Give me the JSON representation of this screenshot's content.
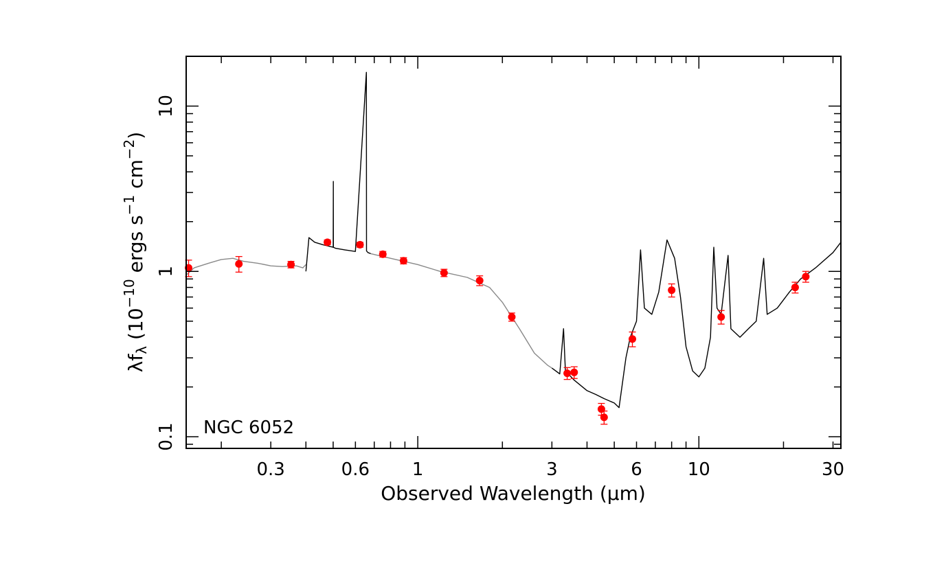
{
  "chart_data": {
    "type": "scatter",
    "title": "",
    "annotation": "NGC 6052",
    "xlabel": "Observed Wavelength (μm)",
    "ylabel": {
      "prefix": "λf",
      "sub": "λ",
      "mid1": " (10",
      "sup1": "−10",
      "mid2": " ergs s",
      "sup2": "−1",
      "mid3": " cm",
      "sup3": "−2",
      "suffix": ")"
    },
    "x_scale": "log",
    "y_scale": "log",
    "xlim": [
      0.15,
      32
    ],
    "ylim": [
      0.085,
      20
    ],
    "x_ticks": [
      0.3,
      0.6,
      1,
      3,
      6,
      10,
      30
    ],
    "x_tick_labels": [
      "0.3",
      "0.6",
      "1",
      "3",
      "6",
      "10",
      "30"
    ],
    "y_ticks": [
      0.1,
      1,
      10
    ],
    "y_tick_labels": [
      "0.1",
      "1",
      "10"
    ],
    "grid": false,
    "series": [
      {
        "role": "photometry",
        "color": "#ff0000",
        "points": [
          {
            "x": 0.153,
            "y": 1.05,
            "err": 0.12
          },
          {
            "x": 0.231,
            "y": 1.11,
            "err": 0.12
          },
          {
            "x": 0.354,
            "y": 1.1,
            "err": 0.05
          },
          {
            "x": 0.477,
            "y": 1.5,
            "err": 0.05
          },
          {
            "x": 0.623,
            "y": 1.45,
            "err": 0.05
          },
          {
            "x": 0.751,
            "y": 1.27,
            "err": 0.05
          },
          {
            "x": 0.89,
            "y": 1.16,
            "err": 0.05
          },
          {
            "x": 1.24,
            "y": 0.98,
            "err": 0.05
          },
          {
            "x": 1.66,
            "y": 0.88,
            "err": 0.06
          },
          {
            "x": 2.16,
            "y": 0.53,
            "err": 0.03
          },
          {
            "x": 3.4,
            "y": 0.242,
            "err": 0.02
          },
          {
            "x": 3.6,
            "y": 0.245,
            "err": 0.02
          },
          {
            "x": 4.5,
            "y": 0.147,
            "err": 0.012
          },
          {
            "x": 4.6,
            "y": 0.131,
            "err": 0.012
          },
          {
            "x": 5.8,
            "y": 0.39,
            "err": 0.04
          },
          {
            "x": 8.0,
            "y": 0.77,
            "err": 0.07
          },
          {
            "x": 12.0,
            "y": 0.53,
            "err": 0.05
          },
          {
            "x": 22.0,
            "y": 0.8,
            "err": 0.06
          },
          {
            "x": 24.0,
            "y": 0.93,
            "err": 0.07
          }
        ]
      },
      {
        "role": "model-sed",
        "color": "#888888",
        "points": [
          [
            0.15,
            0.95
          ],
          [
            0.16,
            1.05
          ],
          [
            0.18,
            1.12
          ],
          [
            0.2,
            1.18
          ],
          [
            0.22,
            1.2
          ],
          [
            0.24,
            1.15
          ],
          [
            0.27,
            1.12
          ],
          [
            0.3,
            1.08
          ],
          [
            0.33,
            1.07
          ],
          [
            0.37,
            1.08
          ],
          [
            0.39,
            1.05
          ],
          [
            0.4,
            1.1
          ]
        ]
      },
      {
        "role": "optical-spectrum",
        "color": "#000000",
        "points": [
          [
            0.4,
            1.0
          ],
          [
            0.41,
            1.6
          ],
          [
            0.43,
            1.5
          ],
          [
            0.46,
            1.45
          ],
          [
            0.5,
            1.4
          ],
          [
            0.5007,
            3.5
          ],
          [
            0.501,
            1.4
          ],
          [
            0.51,
            1.38
          ],
          [
            0.55,
            1.35
          ],
          [
            0.6,
            1.32
          ],
          [
            0.6563,
            16.0
          ],
          [
            0.657,
            1.33
          ],
          [
            0.665,
            1.3
          ],
          [
            0.68,
            1.28
          ]
        ]
      },
      {
        "role": "model-sed-nir",
        "color": "#888888",
        "points": [
          [
            0.68,
            1.28
          ],
          [
            0.8,
            1.2
          ],
          [
            1.0,
            1.1
          ],
          [
            1.2,
            1.0
          ],
          [
            1.5,
            0.92
          ],
          [
            1.8,
            0.8
          ],
          [
            2.0,
            0.65
          ],
          [
            2.3,
            0.45
          ],
          [
            2.6,
            0.32
          ],
          [
            2.9,
            0.27
          ],
          [
            3.0,
            0.26
          ]
        ]
      },
      {
        "role": "ir-spectrum",
        "color": "#000000",
        "points": [
          [
            3.0,
            0.26
          ],
          [
            3.2,
            0.24
          ],
          [
            3.3,
            0.45
          ],
          [
            3.35,
            0.25
          ],
          [
            3.6,
            0.22
          ],
          [
            4.0,
            0.19
          ],
          [
            4.3,
            0.18
          ],
          [
            4.6,
            0.17
          ],
          [
            5.0,
            0.16
          ],
          [
            5.2,
            0.15
          ],
          [
            5.5,
            0.3
          ],
          [
            5.7,
            0.4
          ],
          [
            6.0,
            0.5
          ],
          [
            6.2,
            1.35
          ],
          [
            6.4,
            0.6
          ],
          [
            6.8,
            0.55
          ],
          [
            7.2,
            0.75
          ],
          [
            7.7,
            1.55
          ],
          [
            8.2,
            1.2
          ],
          [
            8.6,
            0.7
          ],
          [
            9.0,
            0.35
          ],
          [
            9.5,
            0.25
          ],
          [
            10.0,
            0.23
          ],
          [
            10.5,
            0.26
          ],
          [
            11.0,
            0.4
          ],
          [
            11.3,
            1.4
          ],
          [
            11.6,
            0.6
          ],
          [
            12.0,
            0.55
          ],
          [
            12.7,
            1.25
          ],
          [
            13.0,
            0.45
          ],
          [
            14.0,
            0.4
          ],
          [
            15.0,
            0.45
          ],
          [
            16.0,
            0.5
          ],
          [
            17.0,
            1.2
          ],
          [
            17.5,
            0.55
          ],
          [
            19.0,
            0.6
          ],
          [
            21.0,
            0.75
          ],
          [
            23.0,
            0.9
          ],
          [
            26.0,
            1.05
          ],
          [
            30.0,
            1.3
          ],
          [
            32.0,
            1.5
          ]
        ]
      }
    ]
  }
}
